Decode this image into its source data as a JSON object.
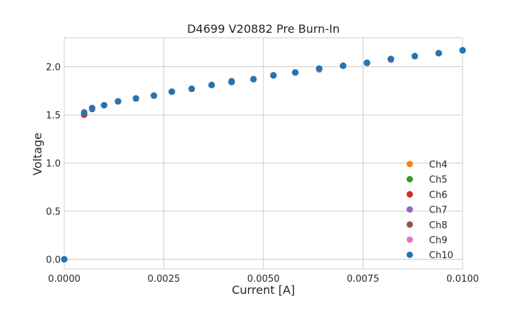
{
  "chart_data": {
    "type": "scatter",
    "title": "D4699 V20882 Pre Burn-In",
    "xlabel": "Current [A]",
    "ylabel": "Voltage",
    "xlim": [
      0,
      0.01
    ],
    "ylim": [
      -0.1,
      2.3
    ],
    "xticks": [
      0,
      0.0025,
      0.005,
      0.0075,
      0.01
    ],
    "xtick_labels": [
      "0.0000",
      "0.0025",
      "0.0050",
      "0.0075",
      "0.0100"
    ],
    "yticks": [
      0,
      0.5,
      1.0,
      1.5,
      2.0
    ],
    "ytick_labels": [
      "0.0",
      "0.5",
      "1.0",
      "1.5",
      "2.0"
    ],
    "grid": true,
    "legend_position": "bottom-right",
    "x": [
      0,
      0.0005,
      0.0007,
      0.001,
      0.00135,
      0.0018,
      0.00225,
      0.0027,
      0.0032,
      0.0037,
      0.0042,
      0.00475,
      0.00525,
      0.0058,
      0.0064,
      0.007,
      0.0076,
      0.0082,
      0.0088,
      0.0094,
      0.01
    ],
    "series": [
      {
        "name": "Ch4",
        "color": "#ff7f0e",
        "values": [
          0.0,
          1.52,
          1.57,
          1.6,
          1.64,
          1.67,
          1.7,
          1.74,
          1.77,
          1.81,
          1.84,
          1.87,
          1.91,
          1.94,
          1.97,
          2.01,
          2.04,
          2.08,
          2.11,
          2.14,
          2.17
        ]
      },
      {
        "name": "Ch5",
        "color": "#2ca02c",
        "values": [
          0.0,
          1.52,
          1.57,
          1.6,
          1.64,
          1.67,
          1.7,
          1.74,
          1.77,
          1.81,
          1.84,
          1.87,
          1.91,
          1.94,
          1.98,
          2.01,
          2.04,
          2.08,
          2.11,
          2.14,
          2.17
        ]
      },
      {
        "name": "Ch6",
        "color": "#d62728",
        "values": [
          0.0,
          1.5,
          1.56,
          1.6,
          1.64,
          1.67,
          1.7,
          1.74,
          1.77,
          1.81,
          1.84,
          1.87,
          1.91,
          1.94,
          1.98,
          2.01,
          2.04,
          2.08,
          2.11,
          2.14,
          2.17
        ]
      },
      {
        "name": "Ch7",
        "color": "#9467bd",
        "values": [
          0.0,
          1.52,
          1.57,
          1.6,
          1.64,
          1.67,
          1.7,
          1.74,
          1.77,
          1.81,
          1.85,
          1.87,
          1.91,
          1.94,
          1.98,
          2.01,
          2.04,
          2.08,
          2.11,
          2.14,
          2.17
        ]
      },
      {
        "name": "Ch8",
        "color": "#8c564b",
        "values": [
          0.0,
          1.52,
          1.57,
          1.6,
          1.64,
          1.67,
          1.7,
          1.74,
          1.77,
          1.81,
          1.85,
          1.87,
          1.91,
          1.94,
          1.98,
          2.01,
          2.04,
          2.08,
          2.11,
          2.14,
          2.17
        ]
      },
      {
        "name": "Ch9",
        "color": "#e377c2",
        "values": [
          0.0,
          1.53,
          1.57,
          1.6,
          1.64,
          1.67,
          1.7,
          1.74,
          1.77,
          1.81,
          1.84,
          1.87,
          1.91,
          1.94,
          1.97,
          2.01,
          2.04,
          2.07,
          2.11,
          2.14,
          2.17
        ]
      },
      {
        "name": "Ch10",
        "color": "#1f77b4",
        "values": [
          0.0,
          1.52,
          1.57,
          1.6,
          1.64,
          1.67,
          1.7,
          1.74,
          1.77,
          1.81,
          1.84,
          1.87,
          1.91,
          1.94,
          1.98,
          2.01,
          2.04,
          2.08,
          2.11,
          2.14,
          2.17
        ]
      }
    ]
  }
}
